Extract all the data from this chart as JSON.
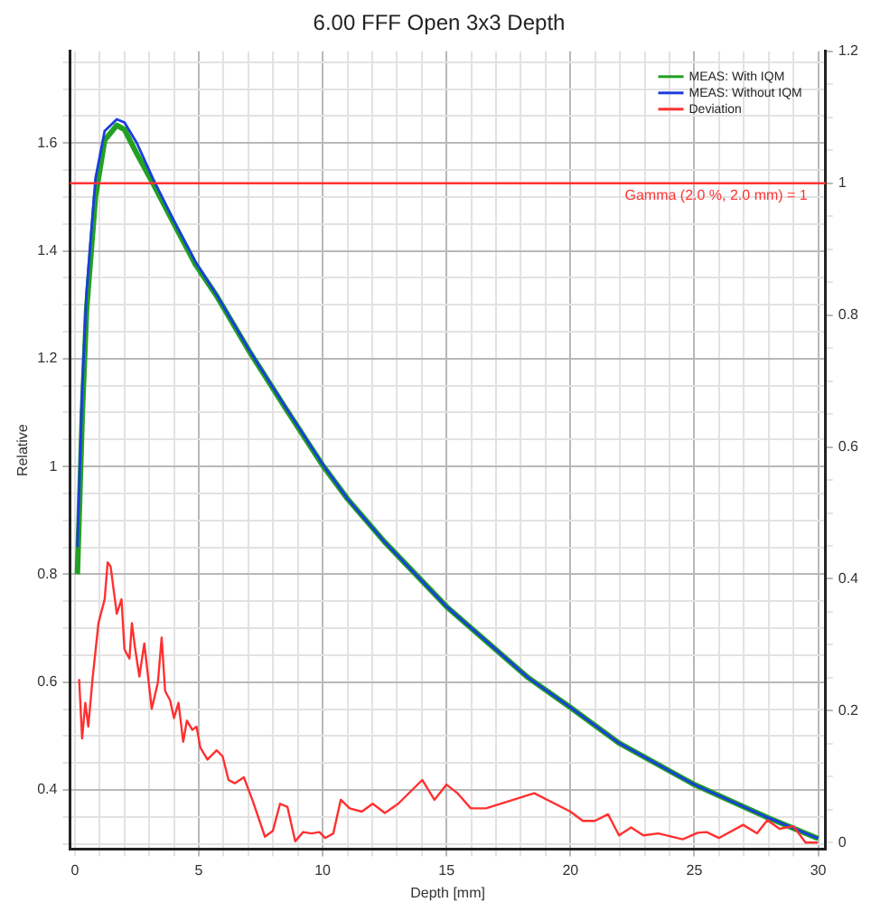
{
  "chart_data": {
    "type": "line",
    "title": "6.00 FFF Open 3x3 Depth",
    "xlabel": "Depth [mm]",
    "ylabel": "Relative",
    "xlim": [
      -0.2,
      30.3
    ],
    "ylim": [
      0.29,
      1.77
    ],
    "y2lim": [
      -0.01,
      1.2
    ],
    "xticks": [
      0,
      {
        "value": 1,
        "label": null
      },
      {
        "value": 2,
        "label": null
      },
      {
        "value": 3,
        "label": null
      },
      {
        "value": 4,
        "label": null
      },
      5,
      {
        "value": 6,
        "label": null
      },
      {
        "value": 7,
        "label": null
      },
      {
        "value": 8,
        "label": null
      },
      {
        "value": 9,
        "label": null
      },
      10,
      {
        "value": 11,
        "label": null
      },
      {
        "value": 12,
        "label": null
      },
      {
        "value": 13,
        "label": null
      },
      {
        "value": 14,
        "label": null
      },
      15,
      {
        "value": 16,
        "label": null
      },
      {
        "value": 17,
        "label": null
      },
      {
        "value": 18,
        "label": null
      },
      {
        "value": 19,
        "label": null
      },
      20,
      {
        "value": 21,
        "label": null
      },
      {
        "value": 22,
        "label": null
      },
      {
        "value": 23,
        "label": null
      },
      {
        "value": 24,
        "label": null
      },
      25,
      {
        "value": 26,
        "label": null
      },
      {
        "value": 27,
        "label": null
      },
      {
        "value": 28,
        "label": null
      },
      {
        "value": 29,
        "label": null
      },
      30
    ],
    "yticks": [
      {
        "value": 0.3,
        "label": null
      },
      {
        "value": 0.35,
        "label": null
      },
      0.4,
      {
        "value": 0.45,
        "label": null
      },
      {
        "value": 0.5,
        "label": null
      },
      {
        "value": 0.55,
        "label": null
      },
      0.6,
      {
        "value": 0.65,
        "label": null
      },
      {
        "value": 0.7,
        "label": null
      },
      {
        "value": 0.75,
        "label": null
      },
      0.8,
      {
        "value": 0.85,
        "label": null
      },
      {
        "value": 0.9,
        "label": null
      },
      {
        "value": 0.95,
        "label": null
      },
      1,
      {
        "value": 1.05,
        "label": null
      },
      {
        "value": 1.1,
        "label": null
      },
      {
        "value": 1.15,
        "label": null
      },
      1.2,
      {
        "value": 1.25,
        "label": null
      },
      {
        "value": 1.3,
        "label": null
      },
      {
        "value": 1.35,
        "label": null
      },
      1.4,
      {
        "value": 1.45,
        "label": null
      },
      {
        "value": 1.5,
        "label": null
      },
      {
        "value": 1.55,
        "label": null
      },
      1.6,
      {
        "value": 1.65,
        "label": null
      },
      {
        "value": 1.7,
        "label": null
      },
      {
        "value": 1.75,
        "label": null
      }
    ],
    "y2ticks": [
      0,
      {
        "value": 0.05,
        "label": null
      },
      {
        "value": 0.1,
        "label": null
      },
      {
        "value": 0.15,
        "label": null
      },
      0.2,
      {
        "value": 0.25,
        "label": null
      },
      {
        "value": 0.3,
        "label": null
      },
      {
        "value": 0.35,
        "label": null
      },
      0.4,
      {
        "value": 0.45,
        "label": null
      },
      {
        "value": 0.5,
        "label": null
      },
      {
        "value": 0.55,
        "label": null
      },
      0.6,
      {
        "value": 0.65,
        "label": null
      },
      {
        "value": 0.7,
        "label": null
      },
      {
        "value": 0.75,
        "label": null
      },
      0.8,
      {
        "value": 0.85,
        "label": null
      },
      {
        "value": 0.9,
        "label": null
      },
      {
        "value": 0.95,
        "label": null
      },
      1,
      {
        "value": 1.05,
        "label": null
      },
      {
        "value": 1.1,
        "label": null
      },
      {
        "value": 1.15,
        "label": null
      },
      1.2
    ],
    "grid": true,
    "legend": "top right",
    "marker": "none",
    "line_style": "solid",
    "ref_lines": [
      {
        "axis": "y2",
        "value": 1,
        "label": "Gamma (2.0 %, 2.0 mm) = 1",
        "color": "#ff3333"
      }
    ],
    "series": [
      {
        "name": "MEAS: With IQM",
        "color": "#22a022",
        "x": [
          0.1,
          0.3,
          0.47,
          0.83,
          1.2,
          1.69,
          2.0,
          2.5,
          3.15,
          4.0,
          4.86,
          5.71,
          7.06,
          8.5,
          10,
          11,
          12.5,
          15,
          18.3,
          20,
          21.96,
          25,
          27.95,
          30
        ],
        "values": [
          0.8,
          1.1,
          1.29,
          1.5,
          1.605,
          1.633,
          1.625,
          1.58,
          1.525,
          1.45,
          1.375,
          1.317,
          1.212,
          1.108,
          1.002,
          0.94,
          0.86,
          0.74,
          0.608,
          0.553,
          0.487,
          0.41,
          0.349,
          0.31
        ]
      },
      {
        "name": "MEAS: Without IQM",
        "color": "#1a3de0",
        "x": [
          0.1,
          0.3,
          0.47,
          0.83,
          1.2,
          1.69,
          2.0,
          2.5,
          3.15,
          4.0,
          4.86,
          5.71,
          7.06,
          8.5,
          10,
          11,
          12.5,
          15,
          18.3,
          20,
          21.96,
          25,
          27.95,
          30
        ],
        "values": [
          0.85,
          1.15,
          1.324,
          1.534,
          1.622,
          1.644,
          1.638,
          1.6,
          1.534,
          1.455,
          1.38,
          1.319,
          1.214,
          1.11,
          1.004,
          0.94,
          0.86,
          0.74,
          0.608,
          0.553,
          0.487,
          0.41,
          0.349,
          0.31
        ]
      },
      {
        "name": "Deviation",
        "color": "#ff3030",
        "axis": "y2",
        "x": [
          0.17,
          0.29,
          0.42,
          0.54,
          0.71,
          0.95,
          1.2,
          1.32,
          1.44,
          1.69,
          1.88,
          2.0,
          2.2,
          2.3,
          2.42,
          2.6,
          2.8,
          3.1,
          3.35,
          3.5,
          3.64,
          3.84,
          4.0,
          4.18,
          4.37,
          4.52,
          4.74,
          4.91,
          5.06,
          5.35,
          5.72,
          5.96,
          6.2,
          6.45,
          6.82,
          7.18,
          7.67,
          7.99,
          8.28,
          8.58,
          8.89,
          9.21,
          9.55,
          9.87,
          10.1,
          10.43,
          10.73,
          11.09,
          11.58,
          12.02,
          12.51,
          13.05,
          14.02,
          14.51,
          15.0,
          15.44,
          15.98,
          16.59,
          18.54,
          20.0,
          20.5,
          20.99,
          21.52,
          21.96,
          22.45,
          22.94,
          23.55,
          24.53,
          25.14,
          25.5,
          25.99,
          26.97,
          27.53,
          27.95,
          28.44,
          29.0,
          29.49,
          29.98
        ],
        "values": [
          0.248,
          0.158,
          0.212,
          0.176,
          0.248,
          0.333,
          0.369,
          0.425,
          0.419,
          0.347,
          0.369,
          0.293,
          0.279,
          0.333,
          0.297,
          0.252,
          0.302,
          0.203,
          0.243,
          0.311,
          0.23,
          0.216,
          0.189,
          0.212,
          0.153,
          0.185,
          0.171,
          0.176,
          0.144,
          0.126,
          0.14,
          0.131,
          0.095,
          0.09,
          0.099,
          0.063,
          0.009,
          0.018,
          0.059,
          0.054,
          0.002,
          0.016,
          0.014,
          0.016,
          0.007,
          0.014,
          0.065,
          0.052,
          0.047,
          0.059,
          0.045,
          0.059,
          0.095,
          0.065,
          0.088,
          0.075,
          0.052,
          0.052,
          0.075,
          0.047,
          0.033,
          0.033,
          0.043,
          0.011,
          0.023,
          0.011,
          0.014,
          0.005,
          0.015,
          0.016,
          0.007,
          0.027,
          0.014,
          0.034,
          0.021,
          0.025,
          0.0,
          0.0
        ]
      }
    ]
  }
}
